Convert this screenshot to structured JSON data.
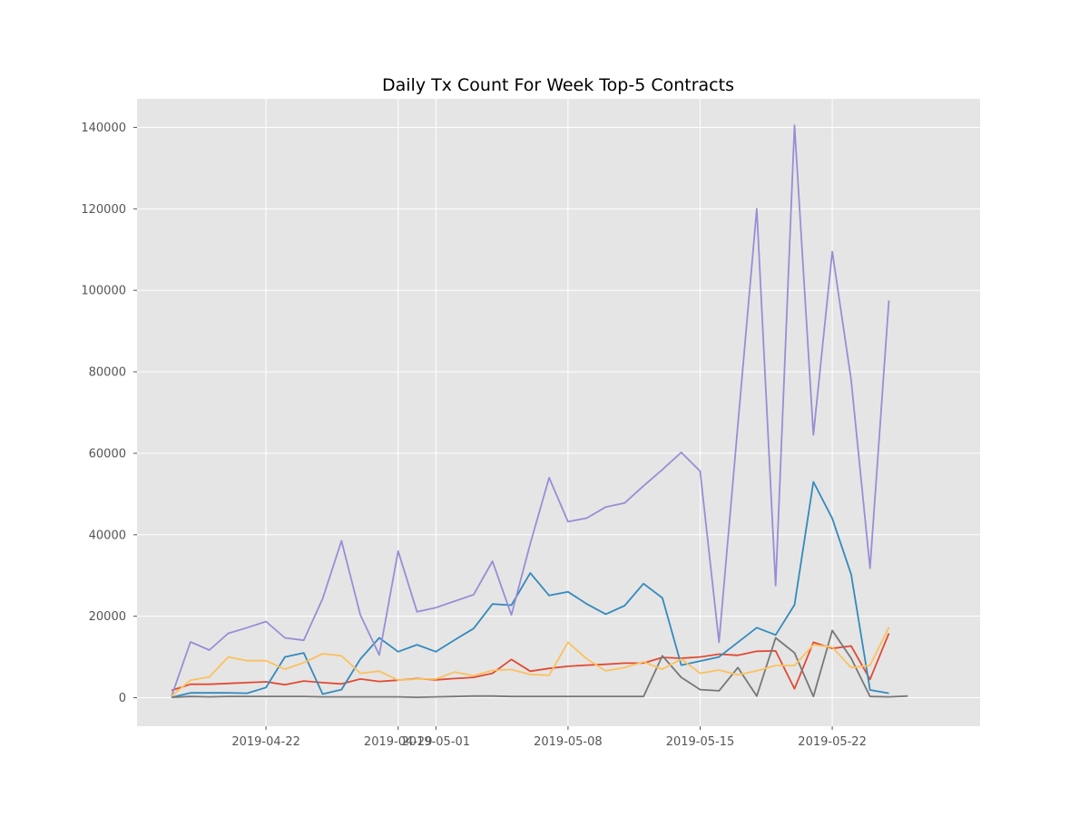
{
  "chart_data": {
    "type": "line",
    "title": "Daily Tx Count For Week Top-5 Contracts",
    "xlabel": "",
    "ylabel": "",
    "x_start": "2019-04-17",
    "x": [
      "2019-04-17",
      "2019-04-18",
      "2019-04-19",
      "2019-04-20",
      "2019-04-21",
      "2019-04-22",
      "2019-04-23",
      "2019-04-24",
      "2019-04-25",
      "2019-04-26",
      "2019-04-27",
      "2019-04-28",
      "2019-04-29",
      "2019-04-30",
      "2019-05-01",
      "2019-05-02",
      "2019-05-03",
      "2019-05-04",
      "2019-05-05",
      "2019-05-06",
      "2019-05-07",
      "2019-05-08",
      "2019-05-09",
      "2019-05-10",
      "2019-05-11",
      "2019-05-12",
      "2019-05-13",
      "2019-05-14",
      "2019-05-15",
      "2019-05-16",
      "2019-05-17",
      "2019-05-18",
      "2019-05-19",
      "2019-05-20",
      "2019-05-21",
      "2019-05-22",
      "2019-05-23",
      "2019-05-24",
      "2019-05-25",
      "2019-05-26",
      "2019-05-27",
      "2019-05-28"
    ],
    "xlim": [
      "2019-04-15T04:00",
      "2019-05-29T20:00"
    ],
    "ylim": [
      -7000,
      147000
    ],
    "x_ticks": [
      {
        "date": "2019-04-22",
        "label": "2019-04-22"
      },
      {
        "date": "2019-04-29",
        "label": "2019-04-29"
      },
      {
        "date": "2019-05-01",
        "label": "2019-05-01"
      },
      {
        "date": "2019-05-08",
        "label": "2019-05-08"
      },
      {
        "date": "2019-05-15",
        "label": "2019-05-15"
      },
      {
        "date": "2019-05-22",
        "label": "2019-05-22"
      }
    ],
    "y_ticks": [
      0,
      20000,
      40000,
      60000,
      80000,
      100000,
      120000,
      140000
    ],
    "y_tick_labels": [
      "0",
      "20000",
      "40000",
      "60000",
      "80000",
      "100000",
      "120000",
      "140000"
    ],
    "grid": true,
    "legend": false,
    "colors": {
      "background": "#e5e5e5",
      "grid": "#ffffff"
    },
    "series": [
      {
        "color": "#E24A33",
        "values": [
          1800,
          3300,
          3300,
          3500,
          3700,
          3900,
          3200,
          4100,
          3700,
          3400,
          4600,
          4000,
          4300,
          4700,
          4400,
          4700,
          5000,
          6000,
          9400,
          6500,
          7200,
          7700,
          8000,
          8200,
          8500,
          8500,
          9900,
          9700,
          10000,
          10700,
          10400,
          11400,
          11500,
          2200,
          13600,
          12100,
          12700,
          4500,
          15800,
          null,
          null,
          null
        ]
      },
      {
        "color": "#348ABD",
        "values": [
          100,
          1200,
          1200,
          1200,
          1100,
          2500,
          10000,
          11000,
          900,
          2000,
          9500,
          14700,
          11300,
          13000,
          11300,
          14200,
          17000,
          23000,
          22700,
          30600,
          25100,
          26000,
          23000,
          20500,
          22600,
          28000,
          24500,
          8000,
          9000,
          10000,
          13600,
          17200,
          15400,
          22800,
          53000,
          44000,
          30300,
          1900,
          1100,
          null,
          null,
          null
        ]
      },
      {
        "color": "#988ED5",
        "values": [
          400,
          13700,
          11700,
          15800,
          17200,
          18700,
          14700,
          14100,
          24300,
          38500,
          20300,
          10500,
          36000,
          21100,
          22100,
          23700,
          25300,
          33500,
          20300,
          37800,
          54000,
          43200,
          44100,
          46800,
          47800,
          52000,
          56000,
          60200,
          55600,
          13600,
          67000,
          120000,
          27500,
          140500,
          64500,
          109500,
          78000,
          31800,
          97500,
          null,
          null,
          null
        ]
      },
      {
        "color": "#777777",
        "values": [
          100,
          300,
          200,
          300,
          300,
          300,
          300,
          300,
          200,
          200,
          200,
          200,
          200,
          100,
          200,
          300,
          400,
          400,
          300,
          300,
          300,
          300,
          300,
          300,
          300,
          300,
          10300,
          5000,
          2000,
          1700,
          7400,
          400,
          14700,
          11000,
          300,
          16500,
          9700,
          300,
          200,
          400,
          null,
          null
        ]
      },
      {
        "color": "#FBC15E",
        "values": [
          400,
          4300,
          5100,
          10000,
          9100,
          9100,
          7000,
          8600,
          10800,
          10300,
          6000,
          6500,
          4300,
          4600,
          4600,
          6300,
          5400,
          6700,
          6900,
          5700,
          5500,
          13600,
          9500,
          6600,
          7400,
          8800,
          7000,
          9500,
          6000,
          6800,
          5600,
          6600,
          7900,
          7900,
          13000,
          12400,
          7400,
          7900,
          17300,
          null,
          null,
          null
        ]
      }
    ]
  }
}
